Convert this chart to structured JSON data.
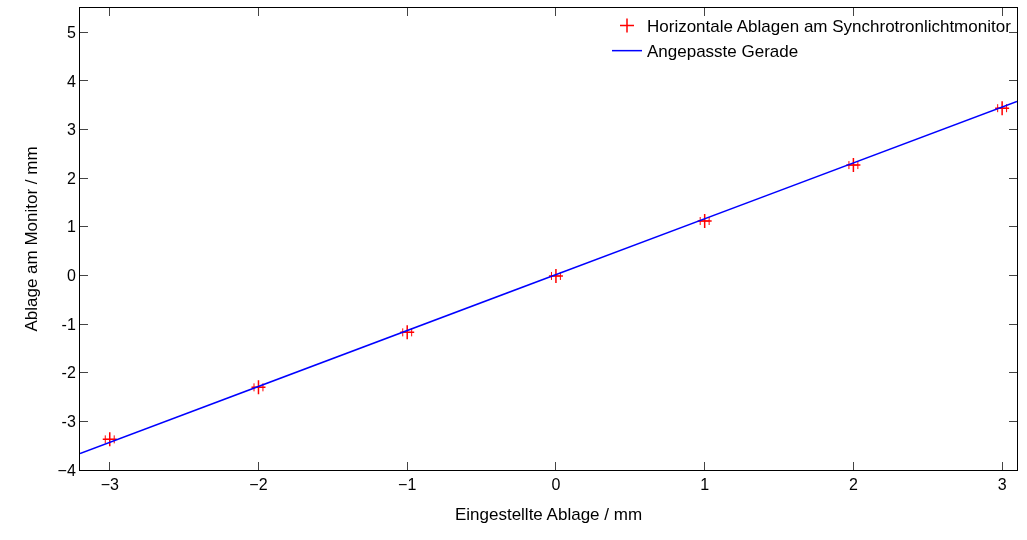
{
  "chart_data": {
    "type": "scatter",
    "xlabel": "Eingestellte Ablage / mm",
    "ylabel": "Ablage am Monitor / mm",
    "xlim": [
      -3.2,
      3.1
    ],
    "ylim": [
      -4,
      5.5
    ],
    "xticks": [
      {
        "value": -3,
        "label": "−3"
      },
      {
        "value": -2,
        "label": "−2"
      },
      {
        "value": -1,
        "label": "−1"
      },
      0,
      1,
      2,
      3
    ],
    "yticks": [
      {
        "value": -4,
        "label": "−4"
      },
      -3,
      -2,
      -1,
      0,
      1,
      2,
      3,
      4,
      5
    ],
    "grid": false,
    "legend": "top right",
    "series": [
      {
        "name": "Horizontale Ablagen am Synchrotronlichtmonitor",
        "color": "#ff0000",
        "marker": "cross",
        "x": [
          -3,
          -2,
          -1,
          0,
          1,
          2,
          3
        ],
        "values": [
          -3.37,
          -2.3,
          -1.17,
          -0.01,
          1.12,
          2.27,
          3.44
        ],
        "xerrors": [
          0.03,
          0.03,
          0.03,
          0.03,
          0.03,
          0.03,
          0.03
        ]
      },
      {
        "name": "Angepasste Gerade",
        "type": "line",
        "color": "#0000ff",
        "marker": "none",
        "line_style": "solid",
        "x": [
          -3.2,
          3.1
        ],
        "values": [
          -3.66,
          3.58
        ]
      }
    ]
  }
}
